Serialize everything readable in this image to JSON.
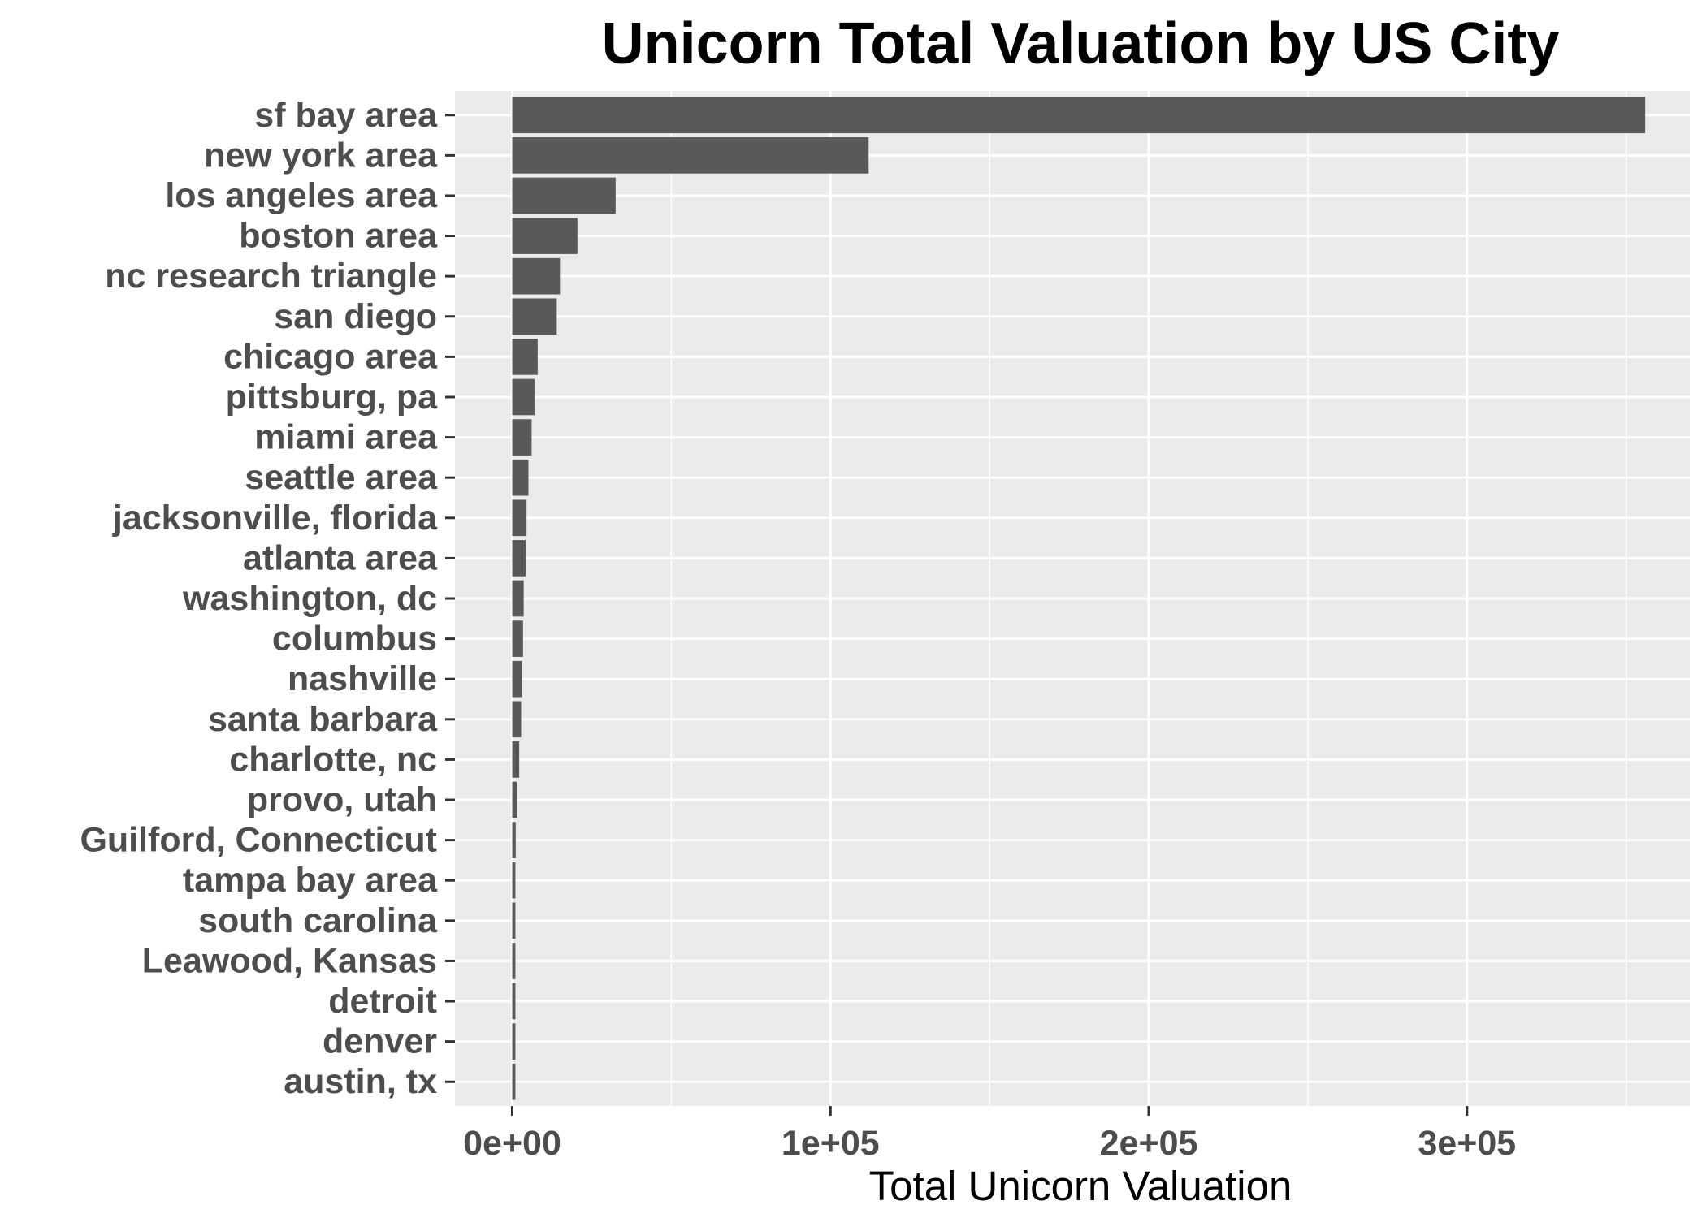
{
  "chart_data": {
    "type": "bar",
    "orientation": "horizontal",
    "title": "Unicorn Total Valuation by US City",
    "xlabel": "Total Unicorn Valuation",
    "ylabel": "",
    "xlim": [
      -18000,
      370000
    ],
    "x_ticks": [
      0,
      100000,
      200000,
      300000
    ],
    "x_tick_labels": [
      "0e+00",
      "1e+05",
      "2e+05",
      "3e+05"
    ],
    "grid": true,
    "legend": "none",
    "bar_color": "#595959",
    "panel_color": "#ebebeb",
    "grid_color": "#ffffff",
    "categories": [
      "sf bay area",
      "new york area",
      "los angeles area",
      "boston area",
      "nc research triangle",
      "san diego",
      "chicago area",
      "pittsburg, pa",
      "miami area",
      "seattle area",
      "jacksonville, florida",
      "atlanta area",
      "washington, dc",
      "columbus",
      "nashville",
      "santa barbara",
      "charlotte, nc",
      "provo, utah",
      "Guilford, Connecticut",
      "tampa bay area",
      "south carolina",
      "Leawood, Kansas",
      "detroit",
      "denver",
      "austin, tx"
    ],
    "values": [
      356000,
      112000,
      32500,
      20500,
      15000,
      14000,
      8000,
      7000,
      6100,
      5100,
      4500,
      4200,
      3600,
      3400,
      3100,
      2800,
      2200,
      1400,
      1100,
      1000,
      1000,
      1000,
      1000,
      1000,
      1000
    ]
  }
}
